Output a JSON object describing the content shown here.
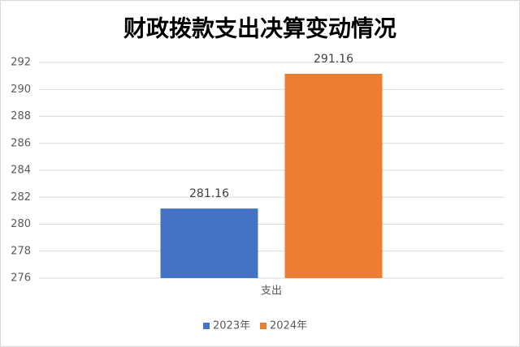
{
  "chart_data": {
    "type": "bar",
    "title": "财政拨款支出决算变动情况",
    "categories": [
      "支出"
    ],
    "series": [
      {
        "name": "2023年",
        "color": "#4472c4",
        "values": [
          281.16
        ]
      },
      {
        "name": "2024年",
        "color": "#ed7d31",
        "values": [
          291.16
        ]
      }
    ],
    "ylim": [
      276,
      292
    ],
    "yticks": [
      276,
      278,
      280,
      282,
      284,
      286,
      288,
      290,
      292
    ],
    "grid": true,
    "legend": "bottom"
  }
}
